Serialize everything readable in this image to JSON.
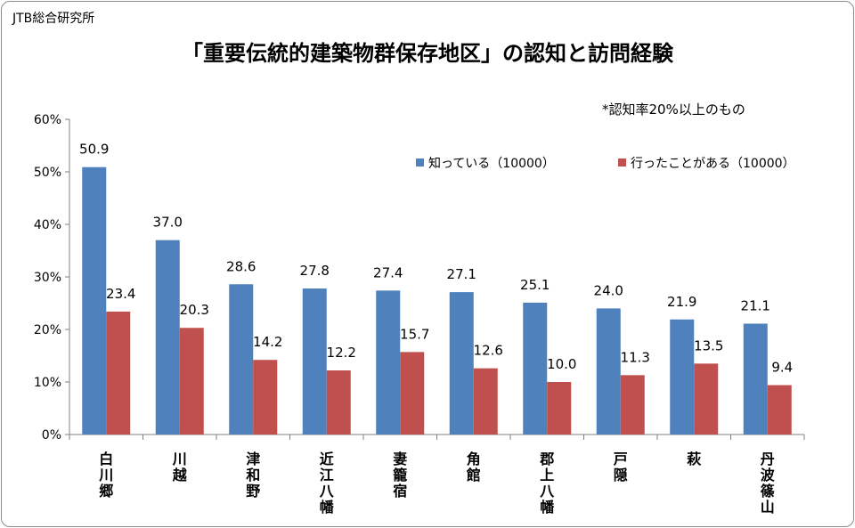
{
  "source": "JTB総合研究所",
  "title": "「重要伝統的建築物群保存地区」の認知と訪問経験",
  "note": "*認知率20%以上のもの",
  "colors": {
    "known": "#4f81bd",
    "visited": "#c0504d",
    "axis": "#808080"
  },
  "chart_data": {
    "type": "bar",
    "categories": [
      "白川郷",
      "川越",
      "津和野",
      "近江八幡",
      "妻籠宿",
      "角館",
      "郡上八幡",
      "戸隠",
      "萩",
      "丹波篠山"
    ],
    "series": [
      {
        "name": "知っている（10000）",
        "values": [
          50.9,
          37.0,
          28.6,
          27.8,
          27.4,
          27.1,
          25.1,
          24.0,
          21.9,
          21.1
        ]
      },
      {
        "name": "行ったことがある（10000）",
        "values": [
          23.4,
          20.3,
          14.2,
          12.2,
          15.7,
          12.6,
          10.0,
          11.3,
          13.5,
          9.4
        ]
      }
    ],
    "value_labels": [
      [
        "50.9",
        "37.0",
        "28.6",
        "27.8",
        "27.4",
        "27.1",
        "25.1",
        "24.0",
        "21.9",
        "21.1"
      ],
      [
        "23.4",
        "20.3",
        "14.2",
        "12.2",
        "15.7",
        "12.6",
        "10.0",
        "11.3",
        "13.5",
        "9.4"
      ]
    ],
    "yticks": [
      "0%",
      "10%",
      "20%",
      "30%",
      "40%",
      "50%",
      "60%"
    ],
    "ylim": [
      0,
      60
    ],
    "xlabel": "",
    "ylabel": "",
    "grid": false,
    "legend": "top-right"
  }
}
